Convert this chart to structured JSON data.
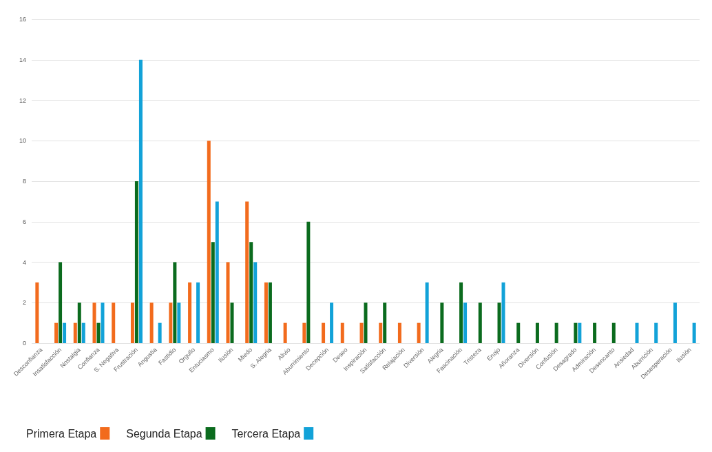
{
  "chart_data": {
    "type": "bar",
    "categories": [
      "Desconfianza",
      "Insatisfacción",
      "Nostalgia",
      "Confianza",
      "S. Negativa",
      "Frustración",
      "Angustia",
      "Fastidio",
      "Orgullo",
      "Entuciasmo",
      "Ilusión",
      "Miedo",
      "S. Alegria",
      "Alivio",
      "Aburrimiento",
      "Decepción",
      "Deseo",
      "Inspiración",
      "Satisfacción",
      "Relajación",
      "Diversión",
      "Alegria",
      "Fascinación",
      "Tristeza",
      "Enojo",
      "Añoranza",
      "Diversión",
      "Confusión",
      "Desagrado",
      "Admiración",
      "Desencanto",
      "Ansiedad",
      "Aburrición",
      "Desesperación",
      "Ilusión"
    ],
    "series": [
      {
        "name": "Primera Etapa",
        "color": "#f26b1d",
        "values": [
          3,
          1,
          1,
          2,
          2,
          2,
          2,
          2,
          3,
          10,
          4,
          7,
          3,
          1,
          1,
          1,
          1,
          1,
          1,
          1,
          1,
          0,
          0,
          0,
          0,
          0,
          0,
          0,
          0,
          0,
          0,
          0,
          0,
          0,
          0
        ]
      },
      {
        "name": "Segunda Etapa",
        "color": "#0b6b1e",
        "values": [
          0,
          4,
          2,
          1,
          0,
          8,
          0,
          4,
          0,
          5,
          2,
          5,
          3,
          0,
          6,
          0,
          0,
          2,
          2,
          0,
          0,
          2,
          3,
          2,
          2,
          1,
          1,
          1,
          1,
          1,
          1,
          0,
          0,
          0,
          0
        ]
      },
      {
        "name": "Tercera Etapa",
        "color": "#12a2d8",
        "values": [
          0,
          1,
          1,
          2,
          0,
          14,
          1,
          2,
          3,
          7,
          0,
          4,
          0,
          0,
          0,
          2,
          0,
          0,
          0,
          0,
          3,
          0,
          2,
          0,
          3,
          0,
          0,
          0,
          1,
          0,
          0,
          1,
          1,
          2,
          1
        ]
      }
    ],
    "ylim": [
      0,
      16
    ],
    "yticks": [
      0,
      2,
      4,
      6,
      8,
      10,
      12,
      14,
      16
    ],
    "grid": "y",
    "legend": "bottom left"
  }
}
